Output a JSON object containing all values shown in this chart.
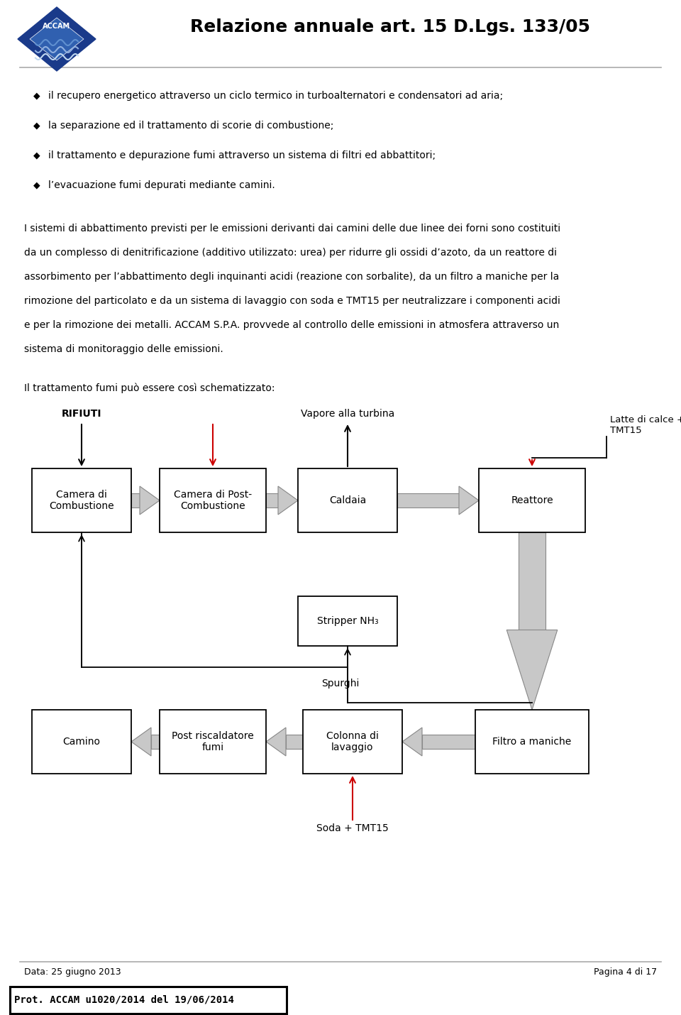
{
  "title": "Relazione annuale art. 15 D.Lgs. 133/05",
  "bullet_lines": [
    "il recupero energetico attraverso un ciclo termico in turboalternatori e condensatori ad aria;",
    "la separazione ed il trattamento di scorie di combustione;",
    "il trattamento e depurazione fumi attraverso un sistema di filtri ed abbattitori;",
    "l’evacuazione fumi depurati mediante camini."
  ],
  "para1_lines": [
    "I sistemi di abbattimento previsti per le emissioni derivanti dai camini delle due linee dei forni sono costituiti",
    "da un complesso di denitrificazione (additivo utilizzato: urea) per ridurre gli ossidi d’azoto, da un reattore di",
    "assorbimento per l’abbattimento degli inquinanti acidi (reazione con sorbalite), da un filtro a maniche per la",
    "rimozione del particolato e da un sistema di lavaggio con soda e TMT15 per neutralizzare i componenti acidi",
    "e per la rimozione dei metalli. ACCAM S.P.A. provvede al controllo delle emissioni in atmosfera attraverso un",
    "sistema di monitoraggio delle emissioni."
  ],
  "para2": "Il trattamento fumi può essere così schematizzato:",
  "footer_left": "Data: 25 giugno 2013",
  "footer_right": "Pagina 4 di 17",
  "stamp": "Prot. ACCAM u1020/2014 del 19/06/2014"
}
